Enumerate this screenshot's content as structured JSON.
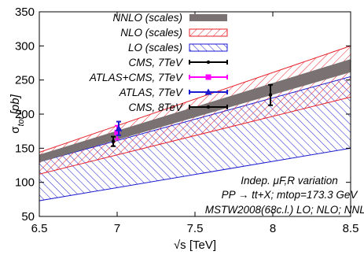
{
  "chart_data": {
    "type": "area",
    "xlabel": "√s [TeV]",
    "ylabel": "σtot [pb]",
    "xlim": [
      6.5,
      8.5
    ],
    "ylim": [
      50,
      350
    ],
    "xticks": [
      "6.5",
      "7",
      "7.5",
      "8",
      "8.5"
    ],
    "yticks": [
      "50",
      "100",
      "150",
      "200",
      "250",
      "300",
      "350"
    ],
    "grid": false,
    "legend_position": "top-right",
    "bands": [
      {
        "name": "NNLO (scales)",
        "color": "#7a7272",
        "style": "solid",
        "x": [
          6.5,
          8.5
        ],
        "lower": [
          130,
          262
        ],
        "upper": [
          140,
          280
        ]
      },
      {
        "name": "NLO (scales)",
        "color": "#e8202a",
        "style": "hatch-down",
        "x": [
          6.5,
          8.5
        ],
        "lower": [
          112,
          225
        ],
        "upper": [
          144,
          300
        ]
      },
      {
        "name": "LO (scales)",
        "color": "#1a1ad0",
        "style": "hatch-up",
        "x": [
          6.5,
          8.5
        ],
        "lower": [
          73,
          150
        ],
        "upper": [
          130,
          255
        ]
      }
    ],
    "measurements": [
      {
        "name": "CMS, 7TeV",
        "color": "#000000",
        "marker": "dot",
        "x": 6.975,
        "y": 160,
        "yerr_low": 7,
        "yerr_high": 7
      },
      {
        "name": "ATLAS+CMS, 7TeV",
        "color": "#ff00ff",
        "marker": "square",
        "x": 7.0,
        "y": 173,
        "yerr_low": 10,
        "yerr_high": 10
      },
      {
        "name": "ATLAS, 7TeV",
        "color": "#1a1ad0",
        "marker": "triangle",
        "x": 7.01,
        "y": 179,
        "yerr_low": 10,
        "yerr_high": 10
      },
      {
        "name": "CMS, 8TeV",
        "color": "#000000",
        "marker": "dot",
        "x": 7.985,
        "y": 228,
        "yerr_low": 15,
        "yerr_high": 15
      }
    ],
    "annotations": [
      "Indep. μF,R variation",
      "PP → tt+X; mtop=173.3 GeV",
      "MSTW2008(68c.l.) LO; NLO; NNLO"
    ]
  }
}
